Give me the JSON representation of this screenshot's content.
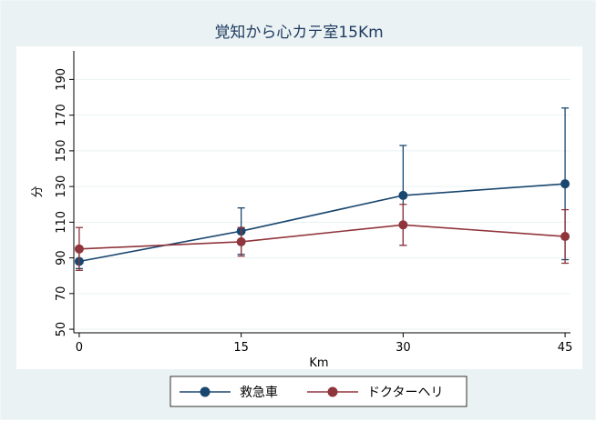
{
  "chart_data": {
    "type": "line",
    "title": "覚知から心カテ室15Km",
    "xlabel": "Km",
    "ylabel": "分",
    "x": [
      0,
      15,
      30,
      45
    ],
    "xticks": [
      "0",
      "15",
      "30",
      "45"
    ],
    "yticks": [
      "50",
      "70",
      "90",
      "110",
      "130",
      "150",
      "170",
      "190"
    ],
    "ylim": [
      48,
      206
    ],
    "xlim": [
      -0.5,
      45.5
    ],
    "grid": "horizontal",
    "legend_position": "bottom",
    "series": [
      {
        "name": "救急車",
        "color": "#1a476f",
        "values": [
          88,
          105,
          125,
          131.5
        ],
        "error_low": [
          84,
          92,
          97,
          89
        ],
        "error_high": [
          94,
          118,
          153,
          174
        ]
      },
      {
        "name": "ドクターヘリ",
        "color": "#90353b",
        "values": [
          95,
          99,
          108.5,
          102
        ],
        "error_low": [
          83,
          91,
          97,
          87
        ],
        "error_high": [
          107,
          107,
          120,
          117
        ]
      }
    ]
  }
}
